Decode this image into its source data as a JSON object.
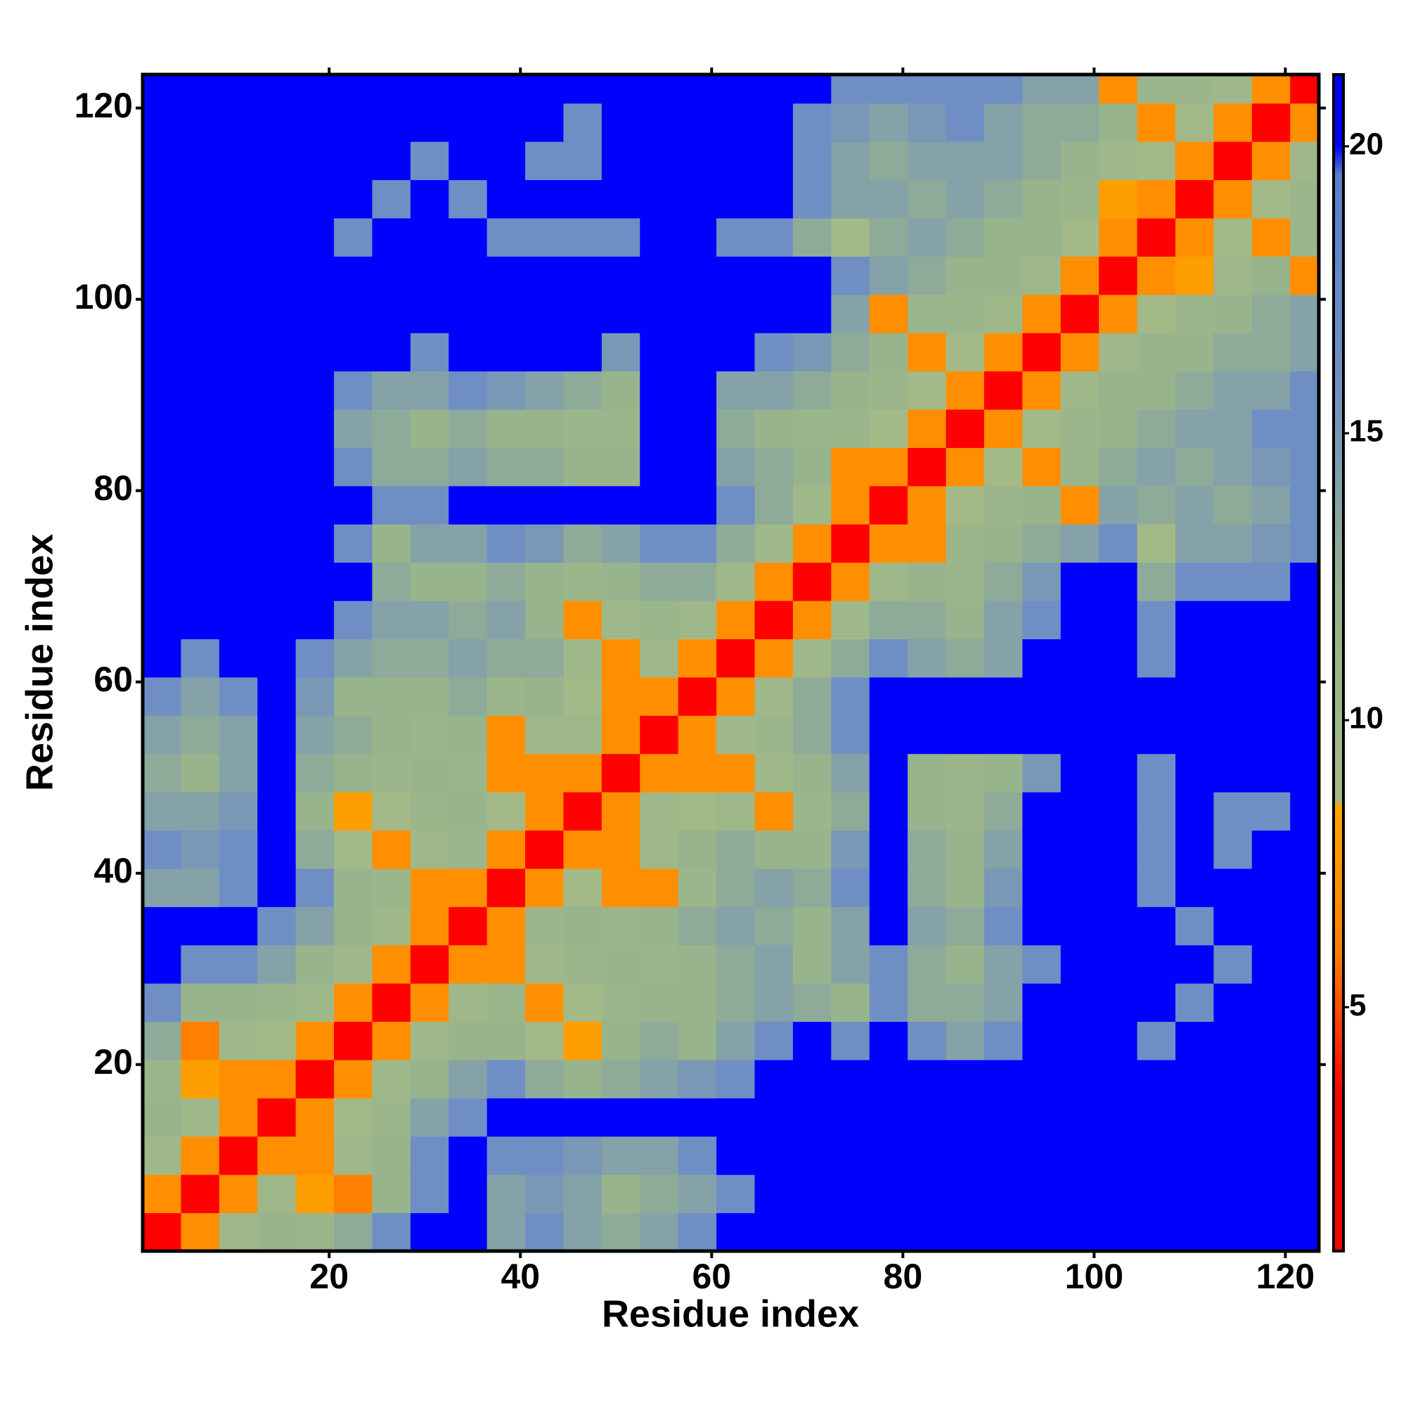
{
  "chart_data": {
    "type": "heatmap",
    "xlabel": "Residue index",
    "ylabel": "Residue index",
    "x": [
      2.5,
      6.5,
      10.5,
      14.5,
      18.5,
      22.5,
      26.5,
      30.5,
      34.5,
      38.5,
      42.5,
      46.5,
      50.5,
      54.5,
      58.5,
      62.5,
      66.5,
      70.5,
      74.5,
      78.5,
      82.5,
      86.5,
      90.5,
      94.5,
      98.5,
      102.5,
      106.5,
      110.5,
      114.5,
      118.5,
      122.5
    ],
    "y": [
      2.5,
      6.5,
      10.5,
      14.5,
      18.5,
      22.5,
      26.5,
      30.5,
      34.5,
      38.5,
      42.5,
      46.5,
      50.5,
      54.5,
      58.5,
      62.5,
      66.5,
      70.5,
      74.5,
      78.5,
      82.5,
      86.5,
      90.5,
      94.5,
      98.5,
      102.5,
      106.5,
      110.5,
      114.5,
      118.5,
      122.5
    ],
    "xlim": [
      0.5,
      123.5
    ],
    "ylim": [
      0.5,
      123.5
    ],
    "xticks": [
      20,
      40,
      60,
      80,
      100,
      120
    ],
    "yticks": [
      20,
      40,
      60,
      80,
      100,
      120
    ],
    "z": [
      [
        2,
        7,
        10,
        12,
        11,
        13,
        16,
        21,
        21,
        14,
        16,
        14,
        13,
        14,
        16,
        21,
        21,
        21,
        21,
        21,
        21,
        21,
        21,
        21,
        21,
        21,
        21,
        21,
        21,
        21,
        21
      ],
      [
        7,
        2,
        7,
        10,
        8,
        6,
        12,
        16,
        21,
        14,
        15,
        14,
        12,
        13,
        14,
        16,
        21,
        21,
        21,
        21,
        21,
        21,
        21,
        21,
        21,
        21,
        21,
        21,
        21,
        21,
        21
      ],
      [
        10,
        7,
        2,
        7,
        7,
        10,
        12,
        16,
        21,
        16,
        16,
        15,
        14,
        14,
        16,
        21,
        21,
        21,
        21,
        21,
        21,
        21,
        21,
        21,
        21,
        21,
        21,
        21,
        21,
        21,
        21
      ],
      [
        12,
        10,
        7,
        2,
        7,
        9,
        11,
        14,
        16,
        21,
        21,
        21,
        21,
        21,
        21,
        21,
        21,
        21,
        21,
        21,
        21,
        21,
        21,
        21,
        21,
        21,
        21,
        21,
        21,
        21,
        21
      ],
      [
        11,
        8,
        7,
        7,
        2,
        7,
        10,
        12,
        14,
        16,
        13,
        12,
        13,
        14,
        15,
        16,
        21,
        21,
        21,
        21,
        21,
        21,
        21,
        21,
        21,
        21,
        21,
        21,
        21,
        21,
        21
      ],
      [
        13,
        6,
        10,
        9,
        7,
        2,
        7,
        10,
        12,
        12,
        9,
        8,
        12,
        13,
        12,
        14,
        16,
        21,
        16,
        21,
        16,
        14,
        16,
        21,
        21,
        21,
        16,
        21,
        21,
        21,
        21
      ],
      [
        16,
        12,
        12,
        11,
        10,
        7,
        2,
        7,
        10,
        11,
        7,
        9,
        11,
        12,
        12,
        13,
        14,
        13,
        12,
        16,
        13,
        13,
        14,
        21,
        21,
        21,
        21,
        16,
        21,
        21,
        21
      ],
      [
        21,
        16,
        16,
        14,
        12,
        10,
        7,
        2,
        7,
        7,
        10,
        11,
        12,
        11,
        12,
        13,
        14,
        12,
        14,
        16,
        13,
        12,
        14,
        16,
        21,
        21,
        21,
        21,
        16,
        21,
        21
      ],
      [
        21,
        21,
        21,
        16,
        14,
        12,
        10,
        7,
        2,
        7,
        11,
        12,
        11,
        12,
        13,
        14,
        13,
        12,
        14,
        21,
        14,
        13,
        16,
        21,
        21,
        21,
        21,
        16,
        21,
        21,
        21
      ],
      [
        14,
        14,
        16,
        21,
        16,
        12,
        11,
        7,
        7,
        2,
        7,
        9,
        7,
        7,
        11,
        13,
        14,
        13,
        16,
        21,
        13,
        12,
        15,
        21,
        21,
        21,
        16,
        21,
        21,
        21,
        21
      ],
      [
        16,
        15,
        16,
        21,
        13,
        9,
        7,
        10,
        11,
        7,
        2,
        7,
        7,
        10,
        12,
        13,
        12,
        12,
        15,
        21,
        13,
        12,
        14,
        21,
        21,
        21,
        16,
        21,
        16,
        21,
        21
      ],
      [
        14,
        14,
        15,
        21,
        12,
        8,
        9,
        11,
        12,
        9,
        7,
        2,
        7,
        10,
        9,
        10,
        7,
        11,
        13,
        21,
        12,
        11,
        13,
        21,
        21,
        21,
        16,
        21,
        16,
        16,
        21
      ],
      [
        13,
        12,
        14,
        21,
        13,
        12,
        11,
        12,
        11,
        7,
        7,
        7,
        2,
        7,
        7,
        7,
        10,
        12,
        14,
        21,
        12,
        11,
        12,
        15,
        21,
        21,
        16,
        21,
        21,
        21,
        21
      ],
      [
        14,
        13,
        14,
        21,
        14,
        13,
        12,
        11,
        12,
        7,
        10,
        10,
        7,
        2,
        7,
        10,
        11,
        13,
        16,
        21,
        21,
        21,
        21,
        21,
        21,
        21,
        21,
        21,
        21,
        21,
        21
      ],
      [
        16,
        14,
        16,
        21,
        15,
        12,
        12,
        12,
        13,
        11,
        12,
        9,
        7,
        7,
        2,
        7,
        10,
        13,
        16,
        21,
        21,
        21,
        21,
        21,
        21,
        21,
        21,
        21,
        21,
        21,
        21
      ],
      [
        21,
        16,
        21,
        21,
        16,
        14,
        13,
        13,
        14,
        13,
        13,
        10,
        7,
        10,
        7,
        2,
        7,
        10,
        13,
        16,
        14,
        13,
        14,
        21,
        21,
        21,
        16,
        21,
        21,
        21,
        21
      ],
      [
        21,
        21,
        21,
        21,
        21,
        16,
        14,
        14,
        13,
        14,
        12,
        7,
        10,
        11,
        10,
        7,
        2,
        7,
        10,
        13,
        13,
        12,
        14,
        16,
        21,
        21,
        16,
        21,
        21,
        21,
        21
      ],
      [
        21,
        21,
        21,
        21,
        21,
        21,
        13,
        12,
        12,
        13,
        12,
        11,
        12,
        13,
        13,
        10,
        7,
        2,
        7,
        10,
        12,
        11,
        13,
        15,
        21,
        21,
        13,
        16,
        16,
        16,
        21
      ],
      [
        21,
        21,
        21,
        21,
        21,
        16,
        12,
        14,
        14,
        16,
        15,
        13,
        14,
        16,
        16,
        13,
        10,
        7,
        2,
        7,
        7,
        11,
        12,
        13,
        14,
        16,
        9,
        14,
        14,
        15,
        16
      ],
      [
        21,
        21,
        21,
        21,
        21,
        21,
        16,
        16,
        21,
        21,
        21,
        21,
        21,
        21,
        21,
        16,
        13,
        10,
        7,
        2,
        7,
        9,
        11,
        12,
        7,
        14,
        13,
        14,
        13,
        14,
        16
      ],
      [
        21,
        21,
        21,
        21,
        21,
        16,
        13,
        13,
        14,
        13,
        13,
        12,
        12,
        21,
        21,
        14,
        13,
        12,
        7,
        7,
        2,
        7,
        9,
        7,
        11,
        13,
        14,
        13,
        14,
        15,
        16
      ],
      [
        21,
        21,
        21,
        21,
        21,
        14,
        13,
        12,
        13,
        12,
        12,
        11,
        11,
        21,
        21,
        13,
        12,
        11,
        11,
        9,
        7,
        2,
        7,
        9,
        11,
        12,
        13,
        14,
        14,
        16,
        16
      ],
      [
        21,
        21,
        21,
        21,
        21,
        16,
        14,
        14,
        16,
        15,
        14,
        13,
        12,
        21,
        21,
        14,
        14,
        13,
        12,
        11,
        9,
        7,
        2,
        7,
        10,
        12,
        12,
        13,
        14,
        14,
        16
      ],
      [
        21,
        21,
        21,
        21,
        21,
        21,
        21,
        16,
        21,
        21,
        21,
        21,
        15,
        21,
        21,
        21,
        16,
        15,
        13,
        12,
        7,
        9,
        7,
        2,
        7,
        10,
        12,
        12,
        13,
        13,
        14
      ],
      [
        21,
        21,
        21,
        21,
        21,
        21,
        21,
        21,
        21,
        21,
        21,
        21,
        21,
        21,
        21,
        21,
        21,
        21,
        14,
        7,
        11,
        11,
        10,
        7,
        2,
        7,
        9,
        11,
        12,
        13,
        14
      ],
      [
        21,
        21,
        21,
        21,
        21,
        21,
        21,
        21,
        21,
        21,
        21,
        21,
        21,
        21,
        21,
        21,
        21,
        21,
        16,
        14,
        13,
        12,
        12,
        10,
        7,
        2,
        7,
        8,
        10,
        12,
        7
      ],
      [
        21,
        21,
        21,
        21,
        21,
        16,
        21,
        21,
        21,
        16,
        16,
        16,
        16,
        21,
        21,
        16,
        16,
        13,
        9,
        13,
        14,
        13,
        12,
        12,
        9,
        7,
        2,
        7,
        9,
        7,
        11
      ],
      [
        21,
        21,
        21,
        21,
        21,
        21,
        16,
        21,
        16,
        21,
        21,
        21,
        21,
        21,
        21,
        21,
        21,
        16,
        14,
        14,
        13,
        14,
        13,
        12,
        11,
        8,
        7,
        2,
        7,
        9,
        11
      ],
      [
        21,
        21,
        21,
        21,
        21,
        21,
        21,
        16,
        21,
        21,
        16,
        16,
        21,
        21,
        21,
        21,
        21,
        16,
        14,
        13,
        14,
        14,
        14,
        13,
        12,
        10,
        9,
        7,
        2,
        7,
        10
      ],
      [
        21,
        21,
        21,
        21,
        21,
        21,
        21,
        21,
        21,
        21,
        21,
        16,
        21,
        21,
        21,
        21,
        21,
        16,
        15,
        14,
        15,
        16,
        14,
        13,
        13,
        12,
        7,
        9,
        7,
        2,
        7
      ],
      [
        21,
        21,
        21,
        21,
        21,
        21,
        21,
        21,
        21,
        21,
        21,
        21,
        21,
        21,
        21,
        21,
        21,
        21,
        16,
        16,
        16,
        16,
        16,
        14,
        14,
        7,
        11,
        11,
        10,
        7,
        2
      ]
    ],
    "colorbar": {
      "lim": [
        0.75,
        21.25
      ],
      "ticks": [
        5,
        10,
        15,
        20
      ],
      "colorscale": [
        [
          0.75,
          "#ff0000"
        ],
        [
          3.5,
          "#ff0000"
        ],
        [
          6,
          "#ff8000"
        ],
        [
          8.5,
          "#ffa500"
        ],
        [
          8.6,
          "#a4ba88"
        ],
        [
          12,
          "#98b48c"
        ],
        [
          16,
          "#6f8fc4"
        ],
        [
          19.5,
          "#5a80cc"
        ],
        [
          20,
          "#0000ff"
        ],
        [
          21.25,
          "#0000ff"
        ]
      ]
    }
  }
}
